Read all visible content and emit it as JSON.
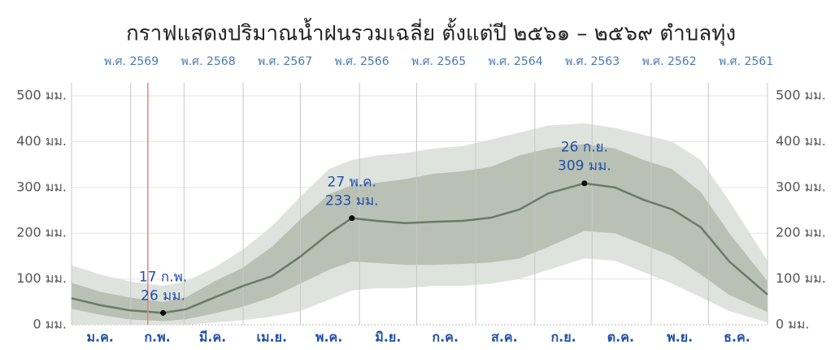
{
  "chart_data": {
    "type": "band_line",
    "title": "กราฟแสดงปริมาณน้ำฝนรวมเฉลี่ย ตั้งแต่ปี ๒๕๖๑ – ๒๕๖๙ ตำบลทุ่ง",
    "legend": [
      "พ.ศ. 2569",
      "พ.ศ. 2568",
      "พ.ศ. 2567",
      "พ.ศ. 2566",
      "พ.ศ. 2565",
      "พ.ศ. 2564",
      "พ.ศ. 2563",
      "พ.ศ. 2562",
      "พ.ศ. 2561"
    ],
    "x": [
      0,
      15,
      30,
      48,
      60,
      75,
      90,
      105,
      120,
      135,
      147,
      160,
      175,
      190,
      205,
      220,
      235,
      250,
      269,
      285,
      300,
      315,
      330,
      345,
      365
    ],
    "xlim": [
      0,
      365
    ],
    "xticks": [
      {
        "value": 15,
        "label": "ม.ค."
      },
      {
        "value": 45,
        "label": "ก.พ."
      },
      {
        "value": 74,
        "label": "มี.ค."
      },
      {
        "value": 105,
        "label": "เม.ย."
      },
      {
        "value": 135,
        "label": "พ.ค."
      },
      {
        "value": 166,
        "label": "มิ.ย."
      },
      {
        "value": 196,
        "label": "ก.ค."
      },
      {
        "value": 227,
        "label": "ส.ค."
      },
      {
        "value": 258,
        "label": "ก.ย."
      },
      {
        "value": 288,
        "label": "ต.ค."
      },
      {
        "value": 319,
        "label": "พ.ย."
      },
      {
        "value": 349,
        "label": "ธ.ค."
      }
    ],
    "x_gridlines": [
      0,
      31,
      59,
      90,
      120,
      151,
      181,
      212,
      243,
      273,
      304,
      334,
      365
    ],
    "ylim": [
      0,
      500
    ],
    "yticks": [
      {
        "value": 0,
        "label": "0 มม."
      },
      {
        "value": 100,
        "label": "100 มม."
      },
      {
        "value": 200,
        "label": "200 มม."
      },
      {
        "value": 300,
        "label": "300 มม."
      },
      {
        "value": 400,
        "label": "400 มม."
      },
      {
        "value": 500,
        "label": "500 มม."
      }
    ],
    "grid": true,
    "current_day": 40,
    "series": [
      {
        "color": "#6b7a66",
        "values": [
          58,
          43,
          32,
          26,
          34,
          60,
          85,
          106,
          149,
          199,
          233,
          227,
          222,
          225,
          227,
          234,
          252,
          287,
          309,
          300,
          273,
          252,
          213,
          138,
          66
        ]
      }
    ],
    "bands": [
      {
        "color": "#dfe3dd",
        "low": [
          0,
          0,
          0,
          0,
          0,
          5,
          10,
          18,
          30,
          55,
          75,
          80,
          80,
          85,
          85,
          90,
          100,
          120,
          145,
          140,
          115,
          90,
          60,
          30,
          5
        ],
        "high": [
          130,
          110,
          95,
          85,
          95,
          125,
          165,
          215,
          280,
          340,
          360,
          370,
          375,
          385,
          390,
          405,
          420,
          435,
          440,
          430,
          415,
          400,
          360,
          270,
          140
        ]
      },
      {
        "color": "#b9c1b4",
        "low": [
          35,
          22,
          12,
          8,
          12,
          25,
          40,
          60,
          90,
          120,
          138,
          135,
          131,
          131,
          133,
          136,
          145,
          170,
          205,
          200,
          175,
          150,
          110,
          65,
          28
        ],
        "high": [
          92,
          72,
          60,
          50,
          60,
          95,
          125,
          170,
          230,
          285,
          305,
          310,
          318,
          330,
          335,
          345,
          370,
          385,
          395,
          385,
          360,
          340,
          290,
          200,
          95
        ]
      }
    ],
    "annotations": [
      {
        "x": 48,
        "y": 26,
        "date": "17 ก.พ.",
        "label": "26 มม."
      },
      {
        "x": 147,
        "y": 233,
        "date": "27 พ.ค.",
        "label": "233 มม."
      },
      {
        "x": 269,
        "y": 309,
        "date": "26 ก.ย.",
        "label": "309 มม."
      }
    ]
  }
}
